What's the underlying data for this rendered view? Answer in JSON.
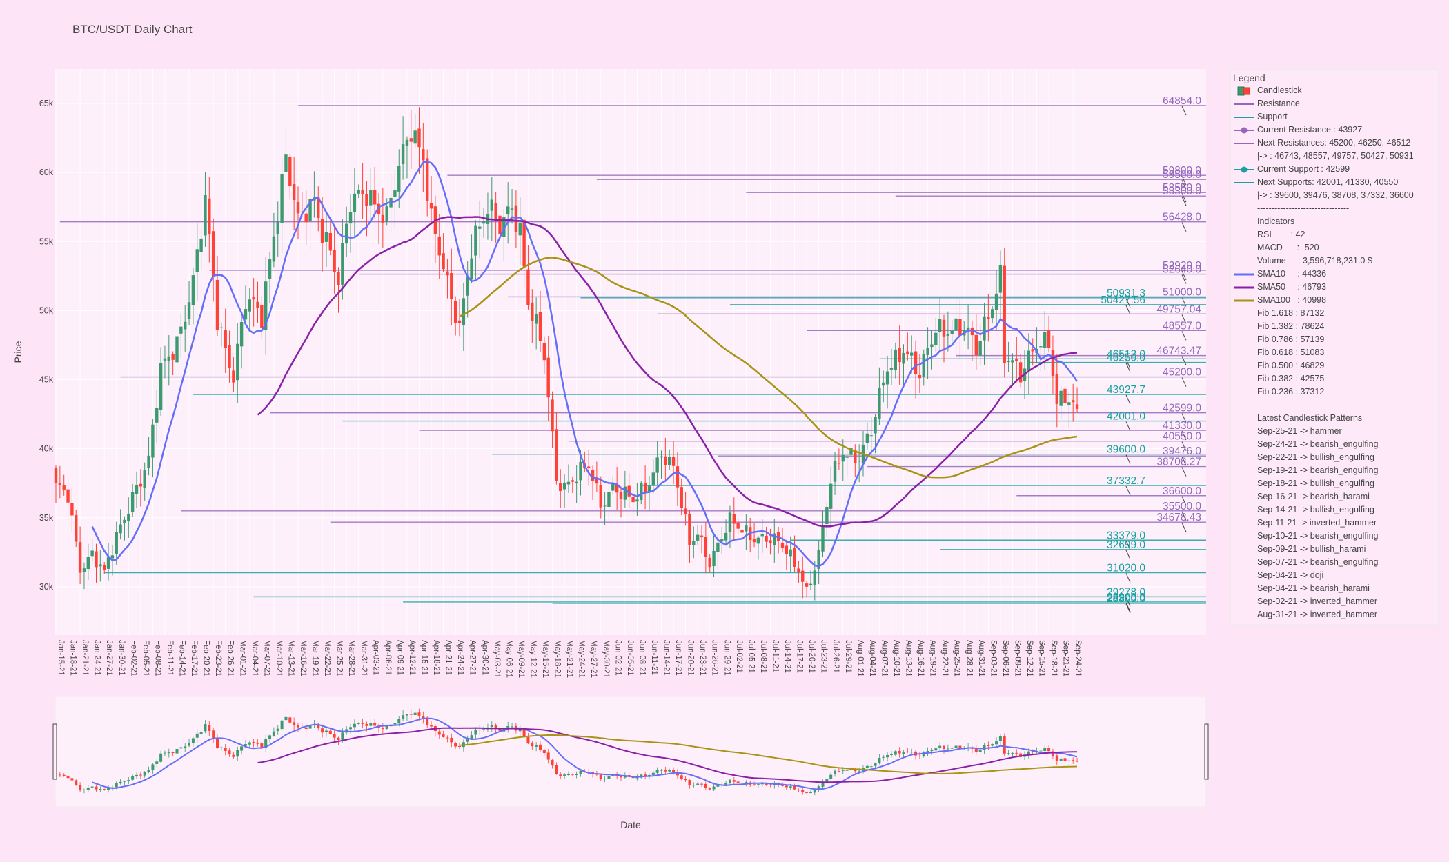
{
  "chart_data": {
    "type": "candlestick",
    "title": "BTC/USDT Daily Chart",
    "xlabel": "Date",
    "ylabel": "Price",
    "ylim": [
      26500,
      67500
    ],
    "yticks": [
      30000,
      35000,
      40000,
      45000,
      50000,
      55000,
      60000,
      65000
    ],
    "ytick_labels": [
      "30k",
      "35k",
      "40k",
      "45k",
      "50k",
      "55k",
      "60k",
      "65k"
    ],
    "grid": true,
    "legend_position": "right",
    "start_date": "Jan-15-21",
    "end_date": "Sep-25-21",
    "date_ticks": [
      "Jan-15-21",
      "Jan-18-21",
      "Jan-21-21",
      "Jan-24-21",
      "Jan-27-21",
      "Jan-30-21",
      "Feb-02-21",
      "Feb-05-21",
      "Feb-08-21",
      "Feb-11-21",
      "Feb-14-21",
      "Feb-17-21",
      "Feb-20-21",
      "Feb-23-21",
      "Feb-26-21",
      "Mar-01-21",
      "Mar-04-21",
      "Mar-07-21",
      "Mar-10-21",
      "Mar-13-21",
      "Mar-16-21",
      "Mar-19-21",
      "Mar-22-21",
      "Mar-25-21",
      "Mar-28-21",
      "Mar-31-21",
      "Apr-03-21",
      "Apr-06-21",
      "Apr-09-21",
      "Apr-12-21",
      "Apr-15-21",
      "Apr-18-21",
      "Apr-21-21",
      "Apr-24-21",
      "Apr-27-21",
      "Apr-30-21",
      "May-03-21",
      "May-06-21",
      "May-09-21",
      "May-12-21",
      "May-15-21",
      "May-18-21",
      "May-21-21",
      "May-24-21",
      "May-27-21",
      "May-30-21",
      "Jun-02-21",
      "Jun-05-21",
      "Jun-08-21",
      "Jun-11-21",
      "Jun-14-21",
      "Jun-17-21",
      "Jun-20-21",
      "Jun-23-21",
      "Jun-26-21",
      "Jun-29-21",
      "Jul-02-21",
      "Jul-05-21",
      "Jul-08-21",
      "Jul-11-21",
      "Jul-14-21",
      "Jul-17-21",
      "Jul-20-21",
      "Jul-23-21",
      "Jul-26-21",
      "Jul-29-21",
      "Aug-01-21",
      "Aug-04-21",
      "Aug-07-21",
      "Aug-10-21",
      "Aug-13-21",
      "Aug-16-21",
      "Aug-19-21",
      "Aug-22-21",
      "Aug-25-21",
      "Aug-28-21",
      "Aug-31-21",
      "Sep-03-21",
      "Sep-06-21",
      "Sep-09-21",
      "Sep-12-21",
      "Sep-15-21",
      "Sep-18-21",
      "Sep-21-21",
      "Sep-24-21"
    ],
    "close_anchors": [
      [
        "Jan-15-21",
        37000
      ],
      [
        "Jan-18-21",
        36500
      ],
      [
        "Jan-21-21",
        31500
      ],
      [
        "Jan-24-21",
        32500
      ],
      [
        "Jan-27-21",
        30800
      ],
      [
        "Jan-30-21",
        33500
      ],
      [
        "Feb-03-21",
        36800
      ],
      [
        "Feb-07-21",
        39000
      ],
      [
        "Feb-10-21",
        45500
      ],
      [
        "Feb-14-21",
        48000
      ],
      [
        "Feb-18-21",
        52000
      ],
      [
        "Feb-21-21",
        57500
      ],
      [
        "Feb-24-21",
        49500
      ],
      [
        "Feb-28-21",
        45500
      ],
      [
        "Mar-03-21",
        50500
      ],
      [
        "Mar-07-21",
        49500
      ],
      [
        "Mar-10-21",
        56000
      ],
      [
        "Mar-13-21",
        61200
      ],
      [
        "Mar-16-21",
        56000
      ],
      [
        "Mar-20-21",
        58000
      ],
      [
        "Mar-24-21",
        54500
      ],
      [
        "Mar-26-21",
        52000
      ],
      [
        "Mar-29-21",
        57500
      ],
      [
        "Apr-02-21",
        59000
      ],
      [
        "Apr-07-21",
        56500
      ],
      [
        "Apr-10-21",
        60000
      ],
      [
        "Apr-13-21",
        63500
      ],
      [
        "Apr-16-21",
        61500
      ],
      [
        "Apr-18-21",
        56500
      ],
      [
        "Apr-22-21",
        51500
      ],
      [
        "Apr-25-21",
        49000
      ],
      [
        "Apr-28-21",
        55000
      ],
      [
        "May-02-21",
        57000
      ],
      [
        "May-05-21",
        56000
      ],
      [
        "May-08-21",
        58000
      ],
      [
        "May-10-21",
        56000
      ],
      [
        "May-12-21",
        50500
      ],
      [
        "May-16-21",
        46500
      ],
      [
        "May-19-21",
        38000
      ],
      [
        "May-21-21",
        37500
      ],
      [
        "May-24-21",
        38000
      ],
      [
        "May-27-21",
        38500
      ],
      [
        "May-30-21",
        36000
      ],
      [
        "Jun-02-21",
        37500
      ],
      [
        "Jun-07-21",
        36000
      ],
      [
        "Jun-10-21",
        37000
      ],
      [
        "Jun-14-21",
        40000
      ],
      [
        "Jun-17-21",
        38500
      ],
      [
        "Jun-21-21",
        33000
      ],
      [
        "Jun-23-21",
        34000
      ],
      [
        "Jun-26-21",
        32000
      ],
      [
        "Jul-01-21",
        34500
      ],
      [
        "Jul-05-21",
        34000
      ],
      [
        "Jul-10-21",
        33500
      ],
      [
        "Jul-14-21",
        32800
      ],
      [
        "Jul-18-21",
        31500
      ],
      [
        "Jul-20-21",
        29800
      ],
      [
        "Jul-23-21",
        32200
      ],
      [
        "Jul-26-21",
        37500
      ],
      [
        "Jul-29-21",
        40000
      ],
      [
        "Aug-02-21",
        39500
      ],
      [
        "Aug-05-21",
        41000
      ],
      [
        "Aug-09-21",
        46000
      ],
      [
        "Aug-13-21",
        47500
      ],
      [
        "Aug-17-21",
        45000
      ],
      [
        "Aug-21-21",
        48800
      ],
      [
        "Aug-24-21",
        49000
      ],
      [
        "Aug-28-21",
        48500
      ],
      [
        "Aug-31-21",
        47000
      ],
      [
        "Sep-03-21",
        50000
      ],
      [
        "Sep-06-21",
        52700
      ],
      [
        "Sep-07-21",
        46800
      ],
      [
        "Sep-11-21",
        45000
      ],
      [
        "Sep-15-21",
        48000
      ],
      [
        "Sep-18-21",
        48000
      ],
      [
        "Sep-20-21",
        43000
      ],
      [
        "Sep-22-21",
        43500
      ],
      [
        "Sep-24-21",
        42800
      ],
      [
        "Sep-25-21",
        42700
      ]
    ],
    "sma10_start": "Jan-24-21",
    "sma50_start": "Mar-06-21",
    "sma100_start": "Apr-25-21",
    "resistance_levels": [
      64854.0,
      59800.0,
      59500.0,
      58550.0,
      58300.0,
      56428.0,
      52920.0,
      52640.0,
      51000.0,
      49757.04,
      48557.0,
      46743.47,
      45200.0,
      42599.0,
      41330.0,
      40550.0,
      39476.0,
      38708.27,
      36600.0,
      35500.0,
      34678.43
    ],
    "support_levels": [
      50931.3,
      50427.56,
      46512.0,
      46250.0,
      43927.7,
      42001.0,
      39600.0,
      37332.7,
      33379.0,
      32699.0,
      31020.0,
      29278.0,
      28900.0,
      28800.0
    ],
    "resistance_labels": [
      "64854.0",
      "59800.0",
      "59500.0",
      "58550.0",
      "58300.0",
      "56428.0",
      "52920.0",
      "52640.0",
      "51000.0",
      "49757.04",
      "48557.0",
      "46743.47",
      "45200.0",
      "42599.0",
      "41330.0",
      "40550.0",
      "39476.0",
      "38708.27",
      "36600.0",
      "35500.0",
      "34678.43"
    ],
    "support_labels": [
      "50931.3",
      "50427.56",
      "46512.0",
      "46250.0",
      "43927.7",
      "42001.0",
      "39600.0",
      "37332.7",
      "33379.0",
      "32699.0",
      "31020.0",
      "29278.0",
      "28900.0",
      "28800.0"
    ],
    "colors": {
      "up": "#3d9970",
      "down": "#ff4136",
      "resistance": "#9467bd",
      "support": "#17a2a0",
      "sma10": "#636efa",
      "sma50": "#8a1fa8",
      "sma100": "#a89314",
      "plot_bg": "#fdf0fb",
      "paper_bg": "#fde4f6"
    }
  },
  "legend": {
    "title": "Legend",
    "items": [
      {
        "icon": "candle",
        "text": "Candlestick"
      },
      {
        "icon": "line-res",
        "text": "Resistance"
      },
      {
        "icon": "line-sup",
        "text": "Support"
      },
      {
        "icon": "dot-res",
        "text": "Current Resistance : 43927"
      },
      {
        "icon": "line-res",
        "text": "Next Resistances: 45200, 46250, 46512"
      },
      {
        "icon": "none",
        "text": "|-> : 46743, 48557, 49757, 50427, 50931"
      },
      {
        "icon": "dot-sup",
        "text": "Current Support : 42599"
      },
      {
        "icon": "line-sup",
        "text": "Next Supports: 42001, 41330, 40550"
      },
      {
        "icon": "none",
        "text": "|-> : 39600, 39476, 38708, 37332, 36600"
      },
      {
        "icon": "none",
        "text": "--------------------------------"
      },
      {
        "icon": "none",
        "text": "Indicators"
      },
      {
        "icon": "none",
        "text": "RSI        : 42"
      },
      {
        "icon": "none",
        "text": "MACD      : -520"
      },
      {
        "icon": "none",
        "text": "Volume     : 3,596,718,231.0 $"
      },
      {
        "icon": "sma10",
        "text": "SMA10     : 44336"
      },
      {
        "icon": "sma50",
        "text": "SMA50     : 46793"
      },
      {
        "icon": "sma100",
        "text": "SMA100   : 40998"
      },
      {
        "icon": "none",
        "text": "Fib 1.618 : 87132"
      },
      {
        "icon": "none",
        "text": "Fib 1.382 : 78624"
      },
      {
        "icon": "none",
        "text": "Fib 0.786 : 57139"
      },
      {
        "icon": "none",
        "text": "Fib 0.618 : 51083"
      },
      {
        "icon": "none",
        "text": "Fib 0.500 : 46829"
      },
      {
        "icon": "none",
        "text": "Fib 0.382 : 42575"
      },
      {
        "icon": "none",
        "text": "Fib 0.236 : 37312"
      },
      {
        "icon": "none",
        "text": "--------------------------------"
      },
      {
        "icon": "none",
        "text": "Latest Candlestick Patterns"
      },
      {
        "icon": "none",
        "text": "Sep-25-21 -> hammer"
      },
      {
        "icon": "none",
        "text": "Sep-24-21 -> bearish_engulfing"
      },
      {
        "icon": "none",
        "text": "Sep-22-21 -> bullish_engulfing"
      },
      {
        "icon": "none",
        "text": "Sep-19-21 -> bearish_engulfing"
      },
      {
        "icon": "none",
        "text": "Sep-18-21 -> bullish_engulfing"
      },
      {
        "icon": "none",
        "text": "Sep-16-21 -> bearish_harami"
      },
      {
        "icon": "none",
        "text": "Sep-14-21 -> bullish_engulfing"
      },
      {
        "icon": "none",
        "text": "Sep-11-21 -> inverted_hammer"
      },
      {
        "icon": "none",
        "text": "Sep-10-21 -> bearish_engulfing"
      },
      {
        "icon": "none",
        "text": "Sep-09-21 -> bullish_harami"
      },
      {
        "icon": "none",
        "text": "Sep-07-21 -> bearish_engulfing"
      },
      {
        "icon": "none",
        "text": "Sep-04-21 -> doji"
      },
      {
        "icon": "none",
        "text": "Sep-04-21 -> bearish_harami"
      },
      {
        "icon": "none",
        "text": "Sep-02-21 -> inverted_hammer"
      },
      {
        "icon": "none",
        "text": "Aug-31-21 -> inverted_hammer"
      }
    ]
  }
}
